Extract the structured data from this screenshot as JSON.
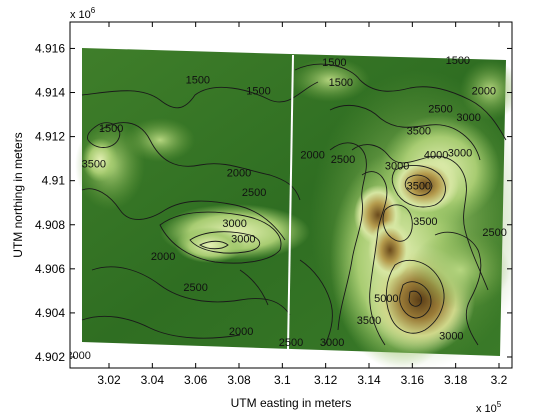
{
  "chart_data": {
    "type": "heatmap",
    "title": "",
    "xlabel": "UTM easting in meters",
    "ylabel": "UTM northing in meters",
    "xlim": [
      3.002,
      3.206
    ],
    "ylim": [
      4.9015,
      4.9172
    ],
    "x_ticks": [
      "3.02",
      "3.04",
      "3.06",
      "3.08",
      "3.1",
      "3.12",
      "3.14",
      "3.16",
      "3.18",
      "3.2"
    ],
    "x_tick_values": [
      3.02,
      3.04,
      3.06,
      3.08,
      3.1,
      3.12,
      3.14,
      3.16,
      3.18,
      3.2
    ],
    "y_ticks": [
      "4.902",
      "4.904",
      "4.906",
      "4.908",
      "4.91",
      "4.912",
      "4.914",
      "4.916"
    ],
    "y_tick_values": [
      4.902,
      4.904,
      4.906,
      4.908,
      4.91,
      4.912,
      4.914,
      4.916
    ],
    "x_exponent": {
      "base": "x 10",
      "power": "5"
    },
    "y_exponent": {
      "base": "x 10",
      "power": "6"
    },
    "colormap": [
      "#2c6a22",
      "#4a8c2c",
      "#7db04a",
      "#d8e8a0",
      "#b59a4a",
      "#6e4f1e",
      "#4a3314"
    ],
    "contour_levels": [
      1500,
      2000,
      2500,
      3000,
      3500,
      4000,
      4500,
      5000
    ],
    "contour_labels": [
      {
        "text": "1500",
        "x": 3.061,
        "y": 4.9144
      },
      {
        "text": "1500",
        "x": 3.089,
        "y": 4.9139
      },
      {
        "text": "1500",
        "x": 3.021,
        "y": 4.9122
      },
      {
        "text": "1500",
        "x": 3.124,
        "y": 4.9152
      },
      {
        "text": "1500",
        "x": 3.181,
        "y": 4.9153
      },
      {
        "text": "1500",
        "x": 3.127,
        "y": 4.9143
      },
      {
        "text": "2000",
        "x": 3.193,
        "y": 4.9139
      },
      {
        "text": "3000",
        "x": 3.186,
        "y": 4.9127
      },
      {
        "text": "2500",
        "x": 3.173,
        "y": 4.9131
      },
      {
        "text": "3500",
        "x": 3.163,
        "y": 4.9121
      },
      {
        "text": "4000",
        "x": 3.171,
        "y": 4.911
      },
      {
        "text": "3500",
        "x": 3.013,
        "y": 4.9106
      },
      {
        "text": "2000",
        "x": 3.08,
        "y": 4.9102
      },
      {
        "text": "2500",
        "x": 3.087,
        "y": 4.9093
      },
      {
        "text": "2000",
        "x": 3.114,
        "y": 4.911
      },
      {
        "text": "2500",
        "x": 3.128,
        "y": 4.9108
      },
      {
        "text": "3000",
        "x": 3.153,
        "y": 4.9105
      },
      {
        "text": "3500",
        "x": 3.163,
        "y": 4.9096
      },
      {
        "text": "3000",
        "x": 3.182,
        "y": 4.9111
      },
      {
        "text": "3000",
        "x": 3.078,
        "y": 4.9079
      },
      {
        "text": "3000",
        "x": 3.082,
        "y": 4.9072
      },
      {
        "text": "2000",
        "x": 3.045,
        "y": 4.9064
      },
      {
        "text": "2500",
        "x": 3.06,
        "y": 4.905
      },
      {
        "text": "3500",
        "x": 3.166,
        "y": 4.908
      },
      {
        "text": "2500",
        "x": 3.198,
        "y": 4.9075
      },
      {
        "text": "2000",
        "x": 3.081,
        "y": 4.903
      },
      {
        "text": "2500",
        "x": 3.104,
        "y": 4.9025
      },
      {
        "text": "3000",
        "x": 3.123,
        "y": 4.9025
      },
      {
        "text": "3500",
        "x": 3.14,
        "y": 4.9035
      },
      {
        "text": "5000",
        "x": 3.148,
        "y": 4.9045
      },
      {
        "text": "3000",
        "x": 3.178,
        "y": 4.9028
      },
      {
        "text": "2000",
        "x": 3.006,
        "y": 4.9019
      }
    ]
  }
}
